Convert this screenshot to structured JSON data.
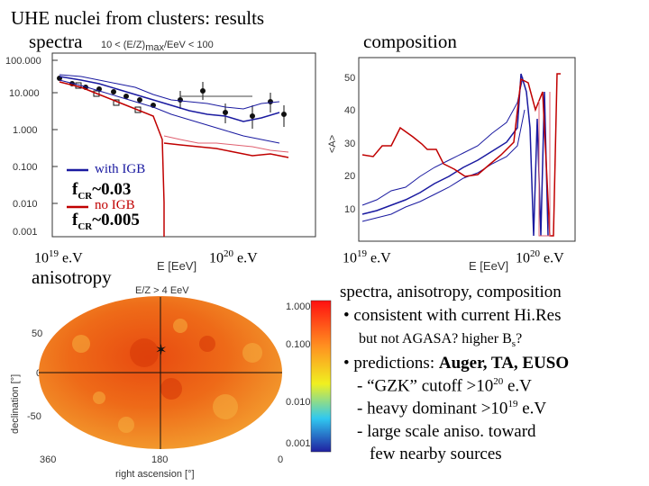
{
  "slide": {
    "title_line1": "UHE nuclei from clusters: results",
    "title_line2": "spectra",
    "composition_heading": "composition",
    "anisotropy_heading": "anisotropy"
  },
  "spectra_panel": {
    "top_axis_label": "10 < (E/Z)",
    "top_axis_label_sub": "max",
    "top_axis_label_tail": "/EeV < 100",
    "y_ticks": [
      "100.000",
      "10.000",
      "1.000",
      "0.100",
      "0.010",
      "0.001"
    ],
    "x_axis_label": "E [EeV]",
    "x_label_left": "10",
    "x_label_left_exp": "19",
    "x_label_left_unit": " e.V",
    "x_label_right": "10",
    "x_label_right_exp": "20",
    "x_label_right_unit": " e.V",
    "legend_with_igb": "with IGB",
    "legend_no_igb": "no IGB",
    "fcr_with": "f",
    "fcr_with_sub": "CR",
    "fcr_with_value": "~0.03",
    "fcr_no": "f",
    "fcr_no_sub": "CR",
    "fcr_no_value": "~0.005"
  },
  "composition_panel": {
    "y_axis_label": "<A>",
    "y_ticks": [
      "50",
      "40",
      "30",
      "20",
      "10"
    ],
    "x_axis_label": "E [EeV]",
    "x_label_left": "10",
    "x_label_left_exp": "19",
    "x_label_left_unit": " e.V",
    "x_label_right": "10",
    "x_label_right_exp": "20",
    "x_label_right_unit": " e.V"
  },
  "sky_map": {
    "top_label": "E/Z > 4 EeV",
    "top_label_prefix": "E/Z",
    "top_label_rel": " > 4 ",
    "top_label_sub": "",
    "top_label_unit": "EeV",
    "y_axis_label": "declination [°]",
    "x_axis_label": "right ascension [°]",
    "dec_ticks": [
      "50",
      "0",
      "-50"
    ],
    "ra_ticks": [
      "360",
      "180",
      "0"
    ],
    "colorbar_ticks": [
      "1.000",
      "0.100",
      "0.010",
      "0.001"
    ]
  },
  "notes": {
    "summary": "spectra, anisotropy, composition",
    "bullet1": "• consistent with current Hi.Res",
    "bullet1_sub_a": "but not AGASA? higher B",
    "bullet1_sub_s": "s",
    "bullet1_sub_b": "?",
    "bullet2_a": "• predictions: ",
    "bullet2_b": "Auger, TA, EUSO",
    "line_gzk_a": "- “GZK” cutoff  >10",
    "line_gzk_exp": "20",
    "line_gzk_b": " e.V",
    "line_heavy_a": "- heavy dominant >10",
    "line_heavy_exp": "19",
    "line_heavy_b": " e.V",
    "line_aniso1": "- large scale aniso. toward",
    "line_aniso2": "few nearby sources"
  },
  "colors": {
    "blue_curve": "#1a1aa0",
    "red_curve": "#c00000",
    "pink_curve": "#e06070",
    "map_hot": "#e84a10",
    "map_mid": "#f08a20"
  }
}
